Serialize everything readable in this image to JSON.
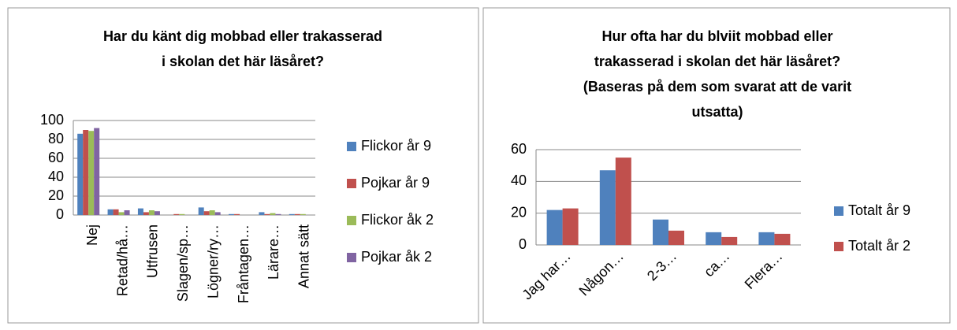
{
  "chart_data": [
    {
      "type": "bar",
      "title": [
        "Har du känt dig mobbad eller trakasserad",
        "i skolan det här läsåret?"
      ],
      "categories": [
        "Nej",
        "Retad/hå…",
        "Utfrusen",
        "Slagen/sp…",
        "Lögner/ry…",
        "Fråntagen…",
        "Lärare…",
        "Annat sätt"
      ],
      "series": [
        {
          "name": "Flickor år 9",
          "color": "#4f81bd",
          "values": [
            86,
            6,
            7,
            0,
            8,
            1,
            3,
            1
          ]
        },
        {
          "name": "Pojkar år 9",
          "color": "#c0504d",
          "values": [
            90,
            6,
            3,
            1,
            4,
            1,
            1,
            1
          ]
        },
        {
          "name": "Flickor åk 2",
          "color": "#9bbb59",
          "values": [
            89,
            3,
            5,
            1,
            5,
            0,
            2,
            1
          ]
        },
        {
          "name": "Pojkar åk 2",
          "color": "#8064a2",
          "values": [
            92,
            5,
            4,
            0,
            3,
            0,
            1,
            0
          ]
        }
      ],
      "ylim": [
        0,
        100
      ],
      "yticks": [
        0,
        20,
        40,
        60,
        80,
        100
      ],
      "grid": true,
      "legend": "right"
    },
    {
      "type": "bar",
      "title": [
        "Hur ofta har du blviit mobbad eller",
        "trakasserad i skolan det här läsåret?",
        "(Baseras på dem som svarat att de varit",
        "utsatta)"
      ],
      "categories": [
        "Jag har…",
        "Någon…",
        "2-3…",
        "ca…",
        "Flera…"
      ],
      "series": [
        {
          "name": "Totalt år 9",
          "color": "#4f81bd",
          "values": [
            22,
            47,
            16,
            8,
            8
          ]
        },
        {
          "name": "Totalt år 2",
          "color": "#c0504d",
          "values": [
            23,
            55,
            9,
            5,
            7
          ]
        }
      ],
      "ylim": [
        0,
        60
      ],
      "yticks": [
        0,
        20,
        40,
        60
      ],
      "grid": true,
      "legend": "right"
    }
  ]
}
